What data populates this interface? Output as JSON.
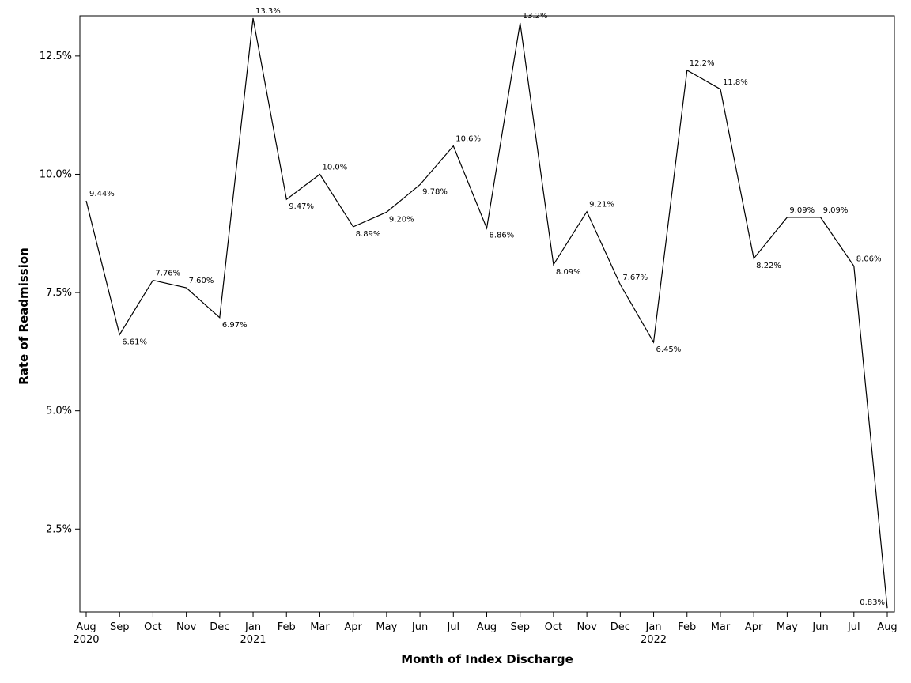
{
  "chart_data": {
    "type": "line",
    "title": "",
    "xlabel": "Month of Index Discharge",
    "ylabel": "Rate of Readmission",
    "ylim": [
      0.75,
      13.35
    ],
    "yticks": [
      "2.5%",
      "5.0%",
      "7.5%",
      "10.0%",
      "12.5%"
    ],
    "ytick_values": [
      2.5,
      5.0,
      7.5,
      10.0,
      12.5
    ],
    "grid": false,
    "legend": "none",
    "line_color": "#000000",
    "x": [
      "2020-08",
      "2020-09",
      "2020-10",
      "2020-11",
      "2020-12",
      "2021-01",
      "2021-02",
      "2021-03",
      "2021-04",
      "2021-05",
      "2021-06",
      "2021-07",
      "2021-08",
      "2021-09",
      "2021-10",
      "2021-11",
      "2021-12",
      "2022-01",
      "2022-02",
      "2022-03",
      "2022-04",
      "2022-05",
      "2022-06",
      "2022-07",
      "2022-08"
    ],
    "categories": [
      "Aug",
      "Sep",
      "Oct",
      "Nov",
      "Dec",
      "Jan",
      "Feb",
      "Mar",
      "Apr",
      "May",
      "Jun",
      "Jul",
      "Aug",
      "Sep",
      "Oct",
      "Nov",
      "Dec",
      "Jan",
      "Feb",
      "Mar",
      "Apr",
      "May",
      "Jun",
      "Jul",
      "Aug"
    ],
    "year_labels": {
      "0": "2020",
      "5": "2021",
      "17": "2022"
    },
    "series": [
      {
        "values": [
          9.44,
          6.61,
          7.76,
          7.6,
          6.97,
          13.3,
          9.47,
          10.0,
          8.89,
          9.2,
          9.78,
          10.6,
          8.86,
          13.2,
          8.09,
          9.21,
          7.67,
          6.45,
          12.2,
          11.8,
          8.22,
          9.09,
          9.09,
          8.06,
          0.83
        ],
        "labels": [
          "9.44%",
          "6.61%",
          "7.76%",
          "7.60%",
          "6.97%",
          "13.3%",
          "9.47%",
          "10.0%",
          "8.89%",
          "9.20%",
          "9.78%",
          "10.6%",
          "8.86%",
          "13.2%",
          "8.09%",
          "9.21%",
          "7.67%",
          "6.45%",
          "12.2%",
          "11.8%",
          "8.22%",
          "9.09%",
          "9.09%",
          "8.06%",
          "0.83%"
        ]
      }
    ]
  }
}
